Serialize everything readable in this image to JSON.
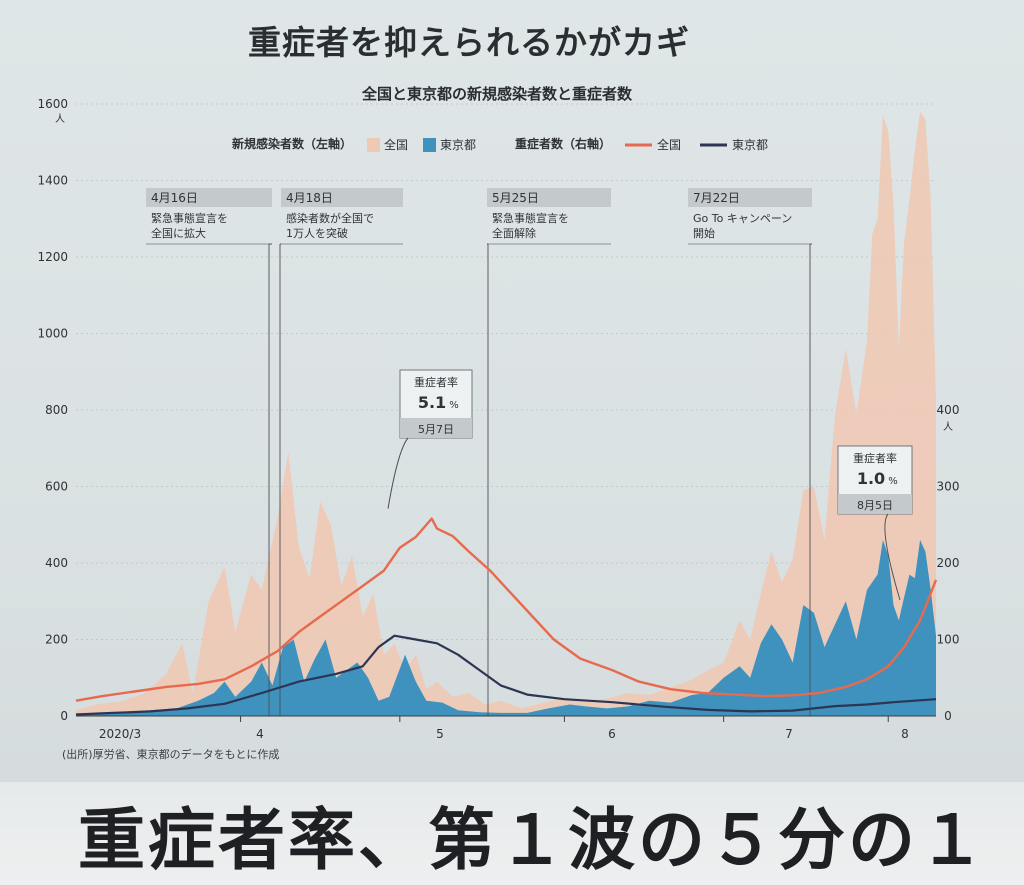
{
  "headline": "重症者を抑えられるかがカギ",
  "bottom_headline": "重症者率、第１波の５分の１",
  "source": "(出所)厚労省、東京都のデータをもとに作成",
  "colors": {
    "national_cases": "#f0c9b5",
    "tokyo_cases": "#3f92bd",
    "national_severe": "#e76a4e",
    "tokyo_severe": "#2c3553",
    "label_box": "#c4c9cb"
  },
  "chart_data": {
    "type": "area",
    "title": "全国と東京都の新規感染者数と重症者数",
    "legend": {
      "left_group": "新規感染者数（左軸）",
      "left_items": [
        "全国",
        "東京都"
      ],
      "right_group": "重症者数（右軸）",
      "right_items": [
        "全国",
        "東京都"
      ]
    },
    "y_left": {
      "ticks": [
        0,
        200,
        400,
        600,
        800,
        1000,
        1200,
        1400,
        1600
      ],
      "unit": "人",
      "ylim": [
        0,
        1600
      ]
    },
    "y_right": {
      "ticks": [
        0,
        100,
        200,
        300,
        400
      ],
      "unit": "人",
      "ylim": [
        0,
        400
      ]
    },
    "x_ticks": [
      "2020/3",
      "4",
      "5",
      "6",
      "7",
      "8"
    ],
    "x_range": [
      "2020-03-01",
      "2020-08-10"
    ],
    "grid": true,
    "series": [
      {
        "name": "全国",
        "axis": "left",
        "kind": "area",
        "points": [
          [
            "2020-03-01",
            15
          ],
          [
            "2020-03-05",
            30
          ],
          [
            "2020-03-10",
            40
          ],
          [
            "2020-03-14",
            60
          ],
          [
            "2020-03-18",
            110
          ],
          [
            "2020-03-21",
            190
          ],
          [
            "2020-03-23",
            60
          ],
          [
            "2020-03-26",
            300
          ],
          [
            "2020-03-29",
            390
          ],
          [
            "2020-03-31",
            220
          ],
          [
            "2020-04-03",
            370
          ],
          [
            "2020-04-05",
            330
          ],
          [
            "2020-04-08",
            520
          ],
          [
            "2020-04-10",
            690
          ],
          [
            "2020-04-12",
            440
          ],
          [
            "2020-04-14",
            360
          ],
          [
            "2020-04-16",
            560
          ],
          [
            "2020-04-18",
            500
          ],
          [
            "2020-04-20",
            340
          ],
          [
            "2020-04-22",
            420
          ],
          [
            "2020-04-24",
            260
          ],
          [
            "2020-04-26",
            320
          ],
          [
            "2020-04-28",
            160
          ],
          [
            "2020-04-30",
            190
          ],
          [
            "2020-05-02",
            120
          ],
          [
            "2020-05-04",
            160
          ],
          [
            "2020-05-06",
            70
          ],
          [
            "2020-05-08",
            90
          ],
          [
            "2020-05-11",
            50
          ],
          [
            "2020-05-14",
            60
          ],
          [
            "2020-05-17",
            30
          ],
          [
            "2020-05-20",
            40
          ],
          [
            "2020-05-24",
            20
          ],
          [
            "2020-05-28",
            35
          ],
          [
            "2020-06-01",
            45
          ],
          [
            "2020-06-05",
            40
          ],
          [
            "2020-06-09",
            45
          ],
          [
            "2020-06-13",
            60
          ],
          [
            "2020-06-17",
            55
          ],
          [
            "2020-06-21",
            75
          ],
          [
            "2020-06-25",
            95
          ],
          [
            "2020-06-28",
            120
          ],
          [
            "2020-07-01",
            140
          ],
          [
            "2020-07-04",
            250
          ],
          [
            "2020-07-06",
            200
          ],
          [
            "2020-07-08",
            320
          ],
          [
            "2020-07-10",
            430
          ],
          [
            "2020-07-12",
            350
          ],
          [
            "2020-07-14",
            410
          ],
          [
            "2020-07-16",
            590
          ],
          [
            "2020-07-18",
            600
          ],
          [
            "2020-07-20",
            460
          ],
          [
            "2020-07-22",
            790
          ],
          [
            "2020-07-24",
            960
          ],
          [
            "2020-07-26",
            790
          ],
          [
            "2020-07-28",
            980
          ],
          [
            "2020-07-29",
            1260
          ],
          [
            "2020-07-30",
            1300
          ],
          [
            "2020-07-31",
            1570
          ],
          [
            "2020-08-01",
            1530
          ],
          [
            "2020-08-02",
            1340
          ],
          [
            "2020-08-03",
            960
          ],
          [
            "2020-08-04",
            1240
          ],
          [
            "2020-08-05",
            1350
          ],
          [
            "2020-08-06",
            1480
          ],
          [
            "2020-08-07",
            1580
          ],
          [
            "2020-08-08",
            1560
          ],
          [
            "2020-08-09",
            1350
          ],
          [
            "2020-08-10",
            820
          ]
        ]
      },
      {
        "name": "東京都",
        "axis": "left",
        "kind": "area",
        "points": [
          [
            "2020-03-01",
            5
          ],
          [
            "2020-03-08",
            8
          ],
          [
            "2020-03-15",
            15
          ],
          [
            "2020-03-20",
            20
          ],
          [
            "2020-03-24",
            40
          ],
          [
            "2020-03-27",
            60
          ],
          [
            "2020-03-29",
            90
          ],
          [
            "2020-03-31",
            50
          ],
          [
            "2020-04-03",
            90
          ],
          [
            "2020-04-05",
            140
          ],
          [
            "2020-04-07",
            80
          ],
          [
            "2020-04-09",
            180
          ],
          [
            "2020-04-11",
            200
          ],
          [
            "2020-04-13",
            90
          ],
          [
            "2020-04-15",
            150
          ],
          [
            "2020-04-17",
            200
          ],
          [
            "2020-04-19",
            100
          ],
          [
            "2020-04-21",
            120
          ],
          [
            "2020-04-23",
            140
          ],
          [
            "2020-04-25",
            100
          ],
          [
            "2020-04-27",
            40
          ],
          [
            "2020-04-29",
            50
          ],
          [
            "2020-05-02",
            160
          ],
          [
            "2020-05-04",
            90
          ],
          [
            "2020-05-06",
            40
          ],
          [
            "2020-05-09",
            35
          ],
          [
            "2020-05-12",
            15
          ],
          [
            "2020-05-16",
            10
          ],
          [
            "2020-05-20",
            8
          ],
          [
            "2020-05-25",
            8
          ],
          [
            "2020-05-29",
            20
          ],
          [
            "2020-06-02",
            30
          ],
          [
            "2020-06-05",
            25
          ],
          [
            "2020-06-09",
            20
          ],
          [
            "2020-06-13",
            25
          ],
          [
            "2020-06-17",
            40
          ],
          [
            "2020-06-21",
            35
          ],
          [
            "2020-06-25",
            55
          ],
          [
            "2020-06-28",
            60
          ],
          [
            "2020-07-01",
            100
          ],
          [
            "2020-07-04",
            130
          ],
          [
            "2020-07-06",
            100
          ],
          [
            "2020-07-08",
            190
          ],
          [
            "2020-07-10",
            240
          ],
          [
            "2020-07-12",
            200
          ],
          [
            "2020-07-14",
            140
          ],
          [
            "2020-07-16",
            290
          ],
          [
            "2020-07-18",
            270
          ],
          [
            "2020-07-20",
            180
          ],
          [
            "2020-07-22",
            240
          ],
          [
            "2020-07-24",
            300
          ],
          [
            "2020-07-26",
            200
          ],
          [
            "2020-07-28",
            330
          ],
          [
            "2020-07-30",
            370
          ],
          [
            "2020-07-31",
            460
          ],
          [
            "2020-08-01",
            420
          ],
          [
            "2020-08-02",
            290
          ],
          [
            "2020-08-03",
            250
          ],
          [
            "2020-08-04",
            310
          ],
          [
            "2020-08-05",
            370
          ],
          [
            "2020-08-06",
            360
          ],
          [
            "2020-08-07",
            460
          ],
          [
            "2020-08-08",
            430
          ],
          [
            "2020-08-09",
            330
          ],
          [
            "2020-08-10",
            210
          ]
        ]
      },
      {
        "name": "全国",
        "axis": "right",
        "kind": "line",
        "points": [
          [
            "2020-03-01",
            20
          ],
          [
            "2020-03-06",
            26
          ],
          [
            "2020-03-12",
            32
          ],
          [
            "2020-03-18",
            38
          ],
          [
            "2020-03-24",
            42
          ],
          [
            "2020-03-29",
            48
          ],
          [
            "2020-04-03",
            65
          ],
          [
            "2020-04-08",
            85
          ],
          [
            "2020-04-12",
            110
          ],
          [
            "2020-04-16",
            130
          ],
          [
            "2020-04-20",
            150
          ],
          [
            "2020-04-24",
            170
          ],
          [
            "2020-04-28",
            190
          ],
          [
            "2020-05-01",
            220
          ],
          [
            "2020-05-04",
            234
          ],
          [
            "2020-05-07",
            258
          ],
          [
            "2020-05-08",
            245
          ],
          [
            "2020-05-11",
            235
          ],
          [
            "2020-05-14",
            215
          ],
          [
            "2020-05-18",
            190
          ],
          [
            "2020-05-22",
            160
          ],
          [
            "2020-05-26",
            130
          ],
          [
            "2020-05-30",
            100
          ],
          [
            "2020-06-04",
            75
          ],
          [
            "2020-06-10",
            60
          ],
          [
            "2020-06-15",
            45
          ],
          [
            "2020-06-21",
            35
          ],
          [
            "2020-06-27",
            30
          ],
          [
            "2020-07-03",
            28
          ],
          [
            "2020-07-09",
            26
          ],
          [
            "2020-07-14",
            27
          ],
          [
            "2020-07-19",
            30
          ],
          [
            "2020-07-24",
            38
          ],
          [
            "2020-07-28",
            48
          ],
          [
            "2020-08-01",
            65
          ],
          [
            "2020-08-04",
            90
          ],
          [
            "2020-08-07",
            125
          ],
          [
            "2020-08-10",
            178
          ]
        ]
      },
      {
        "name": "東京都",
        "axis": "right",
        "kind": "line",
        "points": [
          [
            "2020-03-01",
            2
          ],
          [
            "2020-03-08",
            4
          ],
          [
            "2020-03-15",
            6
          ],
          [
            "2020-03-22",
            10
          ],
          [
            "2020-03-29",
            16
          ],
          [
            "2020-04-05",
            30
          ],
          [
            "2020-04-12",
            45
          ],
          [
            "2020-04-19",
            55
          ],
          [
            "2020-04-24",
            65
          ],
          [
            "2020-04-27",
            90
          ],
          [
            "2020-04-30",
            105
          ],
          [
            "2020-05-04",
            100
          ],
          [
            "2020-05-08",
            95
          ],
          [
            "2020-05-12",
            80
          ],
          [
            "2020-05-16",
            60
          ],
          [
            "2020-05-20",
            40
          ],
          [
            "2020-05-25",
            28
          ],
          [
            "2020-06-01",
            22
          ],
          [
            "2020-06-10",
            18
          ],
          [
            "2020-06-20",
            12
          ],
          [
            "2020-06-28",
            8
          ],
          [
            "2020-07-06",
            6
          ],
          [
            "2020-07-14",
            7
          ],
          [
            "2020-07-22",
            13
          ],
          [
            "2020-07-28",
            15
          ],
          [
            "2020-08-02",
            18
          ],
          [
            "2020-08-06",
            20
          ],
          [
            "2020-08-10",
            22
          ]
        ]
      }
    ],
    "event_annotations": [
      {
        "date_label": "4月16日",
        "text": [
          "緊急事態宣言を",
          "全国に拡大"
        ],
        "x": "2020-04-16"
      },
      {
        "date_label": "4月18日",
        "text": [
          "感染者数が全国で",
          "1万人を突破"
        ],
        "x": "2020-04-18"
      },
      {
        "date_label": "5月25日",
        "text": [
          "緊急事態宣言を",
          "全面解除"
        ],
        "x": "2020-05-25"
      },
      {
        "date_label": "7月22日",
        "text": [
          "Go To キャンペーン",
          "開始"
        ],
        "x": "2020-07-22"
      }
    ],
    "callouts": [
      {
        "label": "重症者率",
        "value": "5.1",
        "unit": "%",
        "date": "5月7日",
        "x": "2020-05-07",
        "y": 258
      },
      {
        "label": "重症者率",
        "value": "1.0",
        "unit": "%",
        "date": "8月5日",
        "x": "2020-08-05",
        "y": 48
      }
    ]
  }
}
